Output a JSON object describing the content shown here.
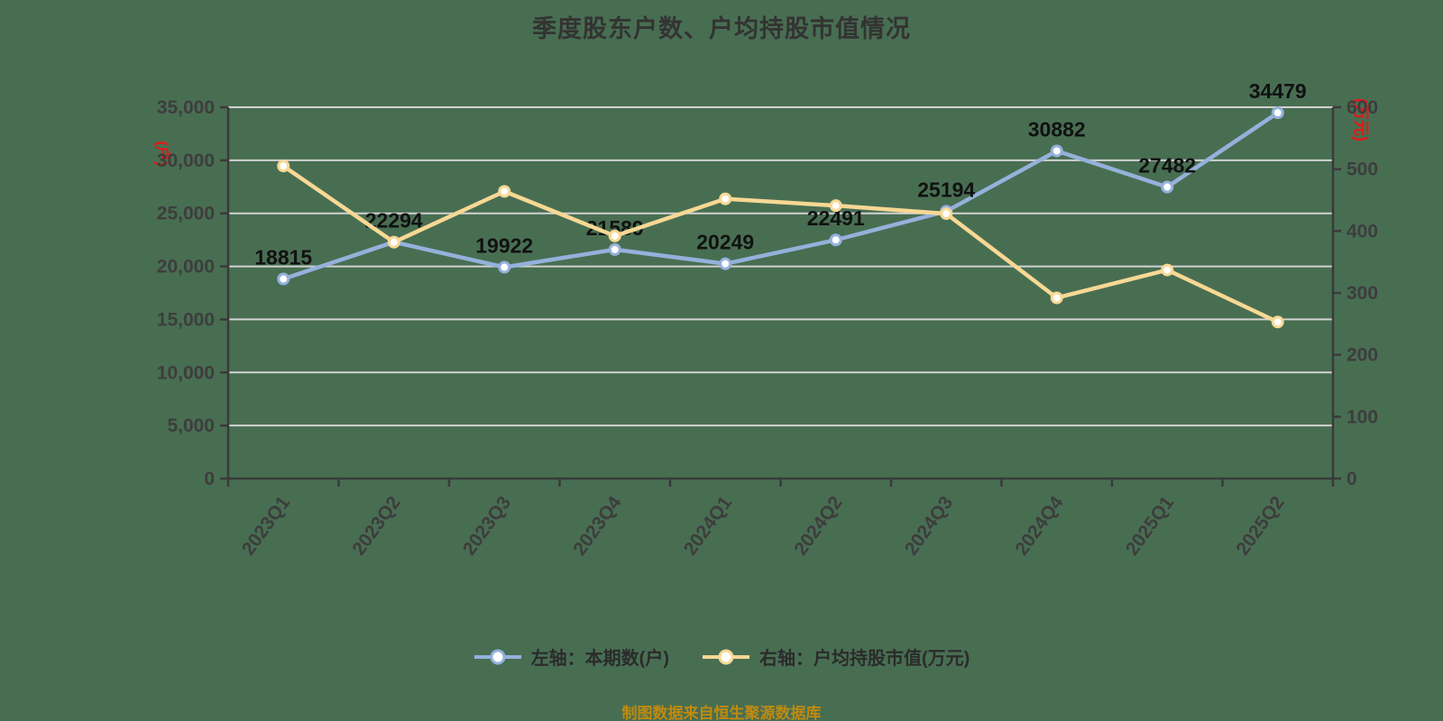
{
  "title": "季度股东户数、户均持股市值情况",
  "source_note": "制图数据来自恒生聚源数据库",
  "left_axis": {
    "unit": "(户)",
    "min": 0,
    "max": 35000,
    "tick_values": [
      0,
      5000,
      10000,
      15000,
      20000,
      25000,
      30000,
      35000
    ],
    "tick_labels": [
      "0",
      "5,000",
      "10,000",
      "15,000",
      "20,000",
      "25,000",
      "30,000",
      "35,000"
    ]
  },
  "right_axis": {
    "unit": "(万元)",
    "min": 0,
    "max": 600,
    "tick_values": [
      0,
      100,
      200,
      300,
      400,
      500,
      600
    ],
    "tick_labels": [
      "0",
      "100",
      "200",
      "300",
      "400",
      "500",
      "600"
    ]
  },
  "legend": {
    "items": [
      {
        "label": "左轴：本期数(户)",
        "color": "#95B1DB"
      },
      {
        "label": "右轴：户均持股市值(万元)",
        "color": "#F8D894"
      }
    ]
  },
  "chart_data": {
    "type": "line",
    "title": "季度股东户数、户均持股市值情况",
    "categories": [
      "2023Q1",
      "2023Q2",
      "2023Q3",
      "2023Q4",
      "2024Q1",
      "2024Q2",
      "2024Q3",
      "2024Q4",
      "2025Q1",
      "2025Q2"
    ],
    "series": [
      {
        "name": "左轴：本期数(户)",
        "axis": "left",
        "color": "#95B1DB",
        "values": [
          18815,
          22294,
          19922,
          21589,
          20249,
          22491,
          25194,
          30882,
          27482,
          34479
        ],
        "show_labels": true
      },
      {
        "name": "右轴：户均持股市值(万元)",
        "axis": "right",
        "color": "#F8D894",
        "values": [
          505,
          382,
          464,
          392,
          452,
          441,
          428,
          292,
          337,
          253
        ],
        "show_labels": false
      }
    ],
    "left_ylim": [
      0,
      35000
    ],
    "right_ylim": [
      0,
      600
    ],
    "grid": true,
    "legend_position": "bottom"
  },
  "colors": {
    "background": "#486E52",
    "grid_line": "#D2D2D2",
    "axis_line": "#3A3A3A",
    "tick_text": "#3D3D3D",
    "data_label": "#111111",
    "title_text": "#333333",
    "unit_text": "#E51717",
    "source_text": "#BF8A10",
    "point_fill": "#FFFFFF"
  }
}
